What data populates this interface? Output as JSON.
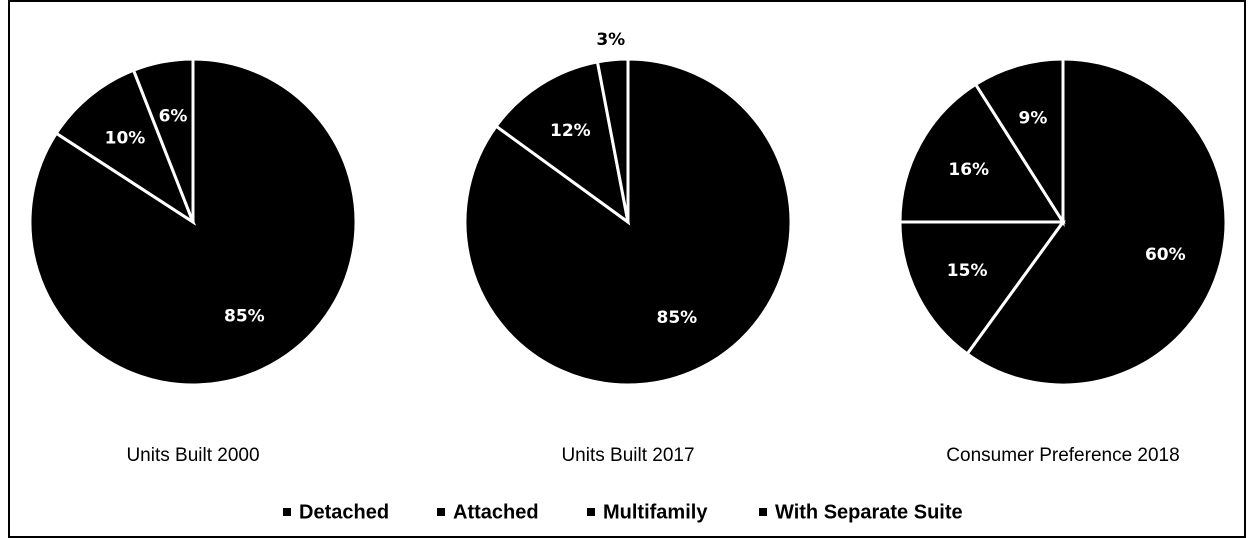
{
  "chart_data": [
    {
      "type": "pie",
      "title": "Units Built 2000",
      "categories": [
        "Detached",
        "Attached",
        "Multifamily",
        "With Separate Suite"
      ],
      "values": [
        85,
        10,
        6,
        null
      ],
      "value_labels": [
        "85%",
        "10%",
        "6%",
        null
      ],
      "color": "#000000"
    },
    {
      "type": "pie",
      "title": "Units Built 2017",
      "categories": [
        "Detached",
        "Attached",
        "Multifamily",
        "With Separate Suite"
      ],
      "values": [
        85,
        12,
        3,
        null
      ],
      "value_labels": [
        "85%",
        "12%",
        "3%",
        null
      ],
      "color": "#000000"
    },
    {
      "type": "pie",
      "title": "Consumer Preference 2018",
      "categories": [
        "Detached",
        "Attached",
        "Multifamily",
        "With Separate Suite"
      ],
      "values": [
        60,
        15,
        16,
        9
      ],
      "value_labels": [
        "60%",
        "15%",
        "16%",
        "9%"
      ],
      "color": "#000000"
    }
  ]
}
